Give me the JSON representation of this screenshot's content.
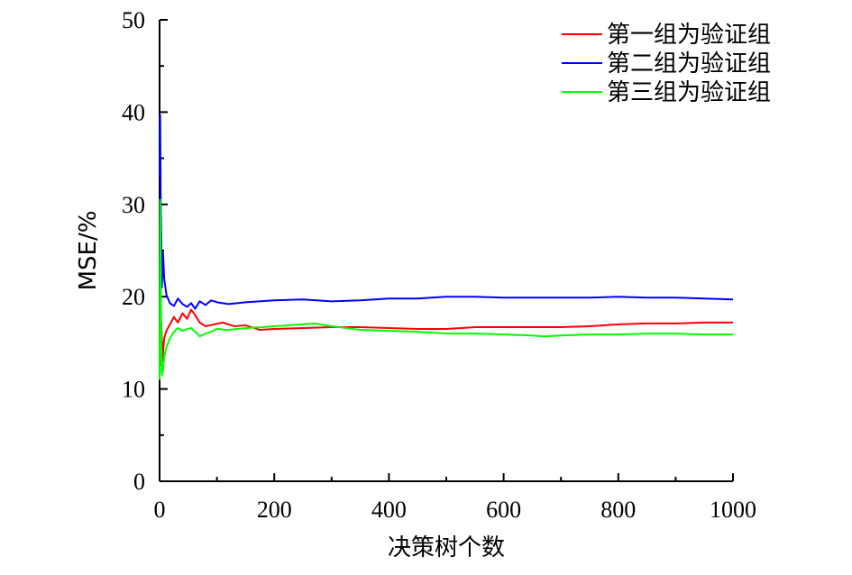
{
  "chart_data": {
    "type": "line",
    "title": "",
    "xlabel": "决策树个数",
    "ylabel": "MSE/%",
    "xlim": [
      0,
      1000
    ],
    "ylim": [
      0,
      50
    ],
    "x_ticks": [
      "0",
      "200",
      "400",
      "600",
      "800",
      "1000"
    ],
    "y_ticks": [
      "0",
      "10",
      "20",
      "30",
      "40",
      "50"
    ],
    "grid": false,
    "legend_position": "top-right",
    "series": [
      {
        "name": "第一组为验证组",
        "color": "#ff0000",
        "points": [
          [
            1,
            12.5
          ],
          [
            2,
            15.0
          ],
          [
            3,
            17.2
          ],
          [
            5,
            13.0
          ],
          [
            8,
            15.5
          ],
          [
            12,
            16.3
          ],
          [
            18,
            17.0
          ],
          [
            25,
            17.8
          ],
          [
            32,
            17.2
          ],
          [
            40,
            18.2
          ],
          [
            48,
            17.6
          ],
          [
            55,
            18.6
          ],
          [
            62,
            18.0
          ],
          [
            70,
            17.2
          ],
          [
            80,
            16.8
          ],
          [
            95,
            17.0
          ],
          [
            110,
            17.2
          ],
          [
            130,
            16.8
          ],
          [
            150,
            16.9
          ],
          [
            175,
            16.4
          ],
          [
            200,
            16.5
          ],
          [
            250,
            16.6
          ],
          [
            300,
            16.7
          ],
          [
            350,
            16.7
          ],
          [
            400,
            16.6
          ],
          [
            450,
            16.5
          ],
          [
            500,
            16.5
          ],
          [
            550,
            16.7
          ],
          [
            600,
            16.7
          ],
          [
            650,
            16.7
          ],
          [
            700,
            16.7
          ],
          [
            750,
            16.8
          ],
          [
            800,
            17.0
          ],
          [
            850,
            17.1
          ],
          [
            900,
            17.1
          ],
          [
            950,
            17.2
          ],
          [
            1000,
            17.2
          ]
        ]
      },
      {
        "name": "第二组为验证组",
        "color": "#0000ff",
        "points": [
          [
            0,
            33.0
          ],
          [
            1,
            39.7
          ],
          [
            2,
            30.0
          ],
          [
            3,
            26.0
          ],
          [
            4,
            21.0
          ],
          [
            5,
            23.0
          ],
          [
            6,
            24.8
          ],
          [
            8,
            22.0
          ],
          [
            12,
            20.2
          ],
          [
            18,
            19.3
          ],
          [
            25,
            19.0
          ],
          [
            32,
            19.8
          ],
          [
            40,
            19.2
          ],
          [
            48,
            18.9
          ],
          [
            55,
            19.3
          ],
          [
            62,
            18.7
          ],
          [
            70,
            19.5
          ],
          [
            80,
            19.1
          ],
          [
            90,
            19.6
          ],
          [
            100,
            19.4
          ],
          [
            120,
            19.2
          ],
          [
            150,
            19.4
          ],
          [
            200,
            19.6
          ],
          [
            250,
            19.7
          ],
          [
            300,
            19.5
          ],
          [
            350,
            19.6
          ],
          [
            400,
            19.8
          ],
          [
            450,
            19.8
          ],
          [
            500,
            20.0
          ],
          [
            550,
            20.0
          ],
          [
            600,
            19.9
          ],
          [
            650,
            19.9
          ],
          [
            700,
            19.9
          ],
          [
            750,
            19.9
          ],
          [
            800,
            20.0
          ],
          [
            850,
            19.9
          ],
          [
            900,
            19.9
          ],
          [
            950,
            19.8
          ],
          [
            1000,
            19.7
          ]
        ]
      },
      {
        "name": "第三组为验证组",
        "color": "#00ff00",
        "points": [
          [
            0,
            11.0
          ],
          [
            1,
            30.5
          ],
          [
            2,
            23.0
          ],
          [
            3,
            15.0
          ],
          [
            4,
            11.5
          ],
          [
            6,
            12.0
          ],
          [
            8,
            13.5
          ],
          [
            12,
            14.5
          ],
          [
            18,
            15.5
          ],
          [
            25,
            16.2
          ],
          [
            32,
            16.6
          ],
          [
            40,
            16.3
          ],
          [
            48,
            16.5
          ],
          [
            55,
            16.6
          ],
          [
            62,
            16.2
          ],
          [
            70,
            15.7
          ],
          [
            80,
            16.0
          ],
          [
            90,
            16.2
          ],
          [
            100,
            16.5
          ],
          [
            120,
            16.4
          ],
          [
            150,
            16.6
          ],
          [
            180,
            16.7
          ],
          [
            200,
            16.8
          ],
          [
            250,
            17.0
          ],
          [
            270,
            17.1
          ],
          [
            300,
            16.8
          ],
          [
            350,
            16.4
          ],
          [
            400,
            16.3
          ],
          [
            450,
            16.2
          ],
          [
            500,
            16.0
          ],
          [
            550,
            16.0
          ],
          [
            600,
            15.9
          ],
          [
            650,
            15.8
          ],
          [
            670,
            15.7
          ],
          [
            700,
            15.8
          ],
          [
            750,
            15.9
          ],
          [
            800,
            15.9
          ],
          [
            850,
            16.0
          ],
          [
            900,
            16.0
          ],
          [
            950,
            15.9
          ],
          [
            1000,
            15.9
          ]
        ]
      }
    ]
  }
}
